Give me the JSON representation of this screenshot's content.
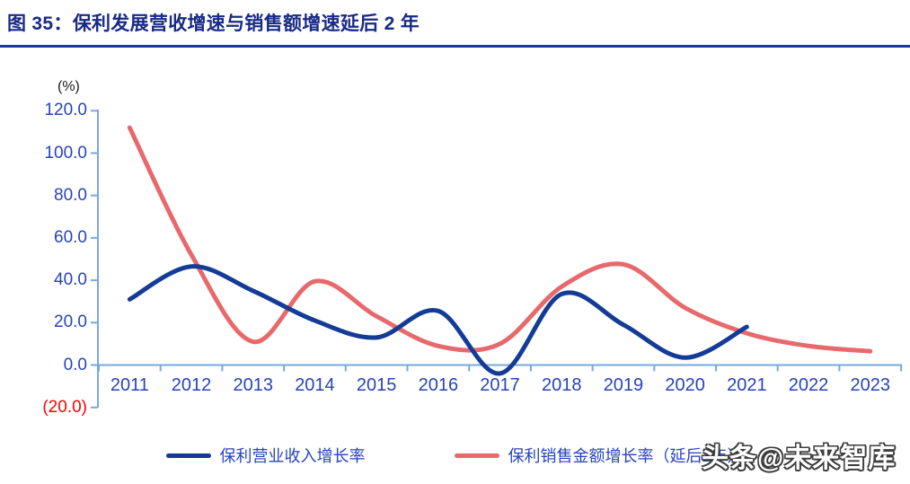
{
  "header": {
    "title": "图 35：保利发展营收增速与销售额增速延后 2 年"
  },
  "watermark": {
    "text": "头条@未来智库"
  },
  "colors": {
    "title": "#182A85",
    "title_underline": "#1B379E",
    "axis_line": "#78A8DC",
    "axis_label_blue": "#2743BC",
    "negative_tick_red": "#FF0000",
    "series_blue": "#143C96",
    "series_red": "#E8696C"
  },
  "chart_data": {
    "type": "line",
    "title": "图 35：保利发展营收增速与销售额增速延后 2 年",
    "xlabel": "",
    "ylabel": "(%)",
    "unit_label": "(%)",
    "categories": [
      "2011",
      "2012",
      "2013",
      "2014",
      "2015",
      "2016",
      "2017",
      "2018",
      "2019",
      "2020",
      "2021",
      "2022",
      "2023"
    ],
    "series": [
      {
        "name": "保利营业收入增长率",
        "color": "#143C96",
        "values": [
          31,
          46.5,
          35,
          21,
          13,
          25.5,
          -4,
          33.5,
          19,
          3.5,
          18
        ]
      },
      {
        "name": "保利销售金额增长率（延后2年）",
        "color": "#E8696C",
        "values": [
          112,
          52,
          11,
          39.5,
          23,
          9,
          10,
          37,
          47.5,
          27,
          15,
          9,
          6.5
        ]
      }
    ],
    "y_axis": {
      "tick_labels": [
        "120.0",
        "100.0",
        "80.0",
        "60.0",
        "40.0",
        "20.0",
        "0.0",
        "(20.0)"
      ],
      "tick_values": [
        120,
        100,
        80,
        60,
        40,
        20,
        0,
        -20
      ]
    },
    "ylim": [
      -20,
      120
    ],
    "grid": false,
    "smooth": true,
    "legend_position": "bottom"
  }
}
